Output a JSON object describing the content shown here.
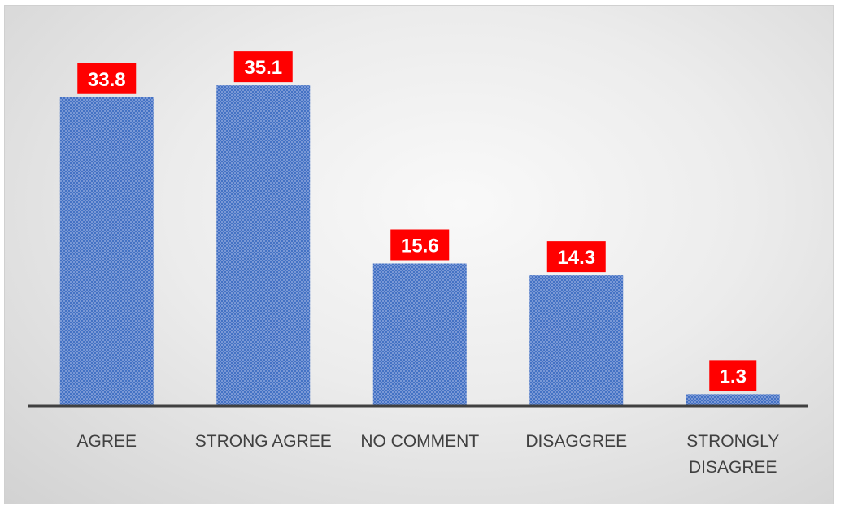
{
  "chart_data": {
    "type": "bar",
    "categories": [
      "AGREE",
      "STRONG AGREE",
      "NO COMMENT",
      "DISAGGREE",
      "STRONGLY DISAGREE"
    ],
    "category_lines": [
      [
        "AGREE"
      ],
      [
        "STRONG AGREE"
      ],
      [
        "NO COMMENT"
      ],
      [
        "DISAGGREE"
      ],
      [
        "STRONGLY",
        "DISAGREE"
      ]
    ],
    "values": [
      33.8,
      35.1,
      15.6,
      14.3,
      1.3
    ],
    "data_labels": [
      "33.8",
      "35.1",
      "15.6",
      "14.3",
      "1.3"
    ],
    "title": "",
    "xlabel": "",
    "ylabel": "",
    "ylim": [
      0,
      40
    ],
    "grid": false,
    "legend": "none",
    "colors": {
      "bar": "#4472c4",
      "bar_pattern": "#8fa9dc",
      "label_box": "#ff0000",
      "label_text": "#ffffff",
      "axis": "#404040",
      "category_text": "#404040"
    }
  }
}
